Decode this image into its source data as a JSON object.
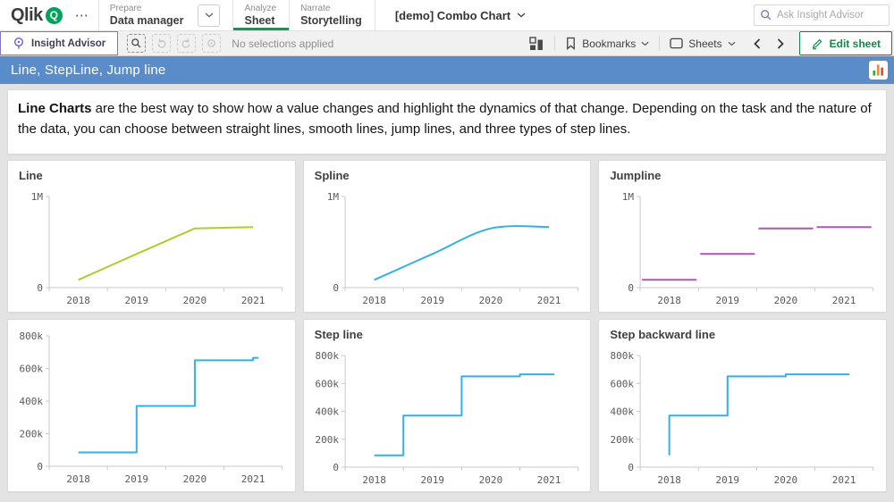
{
  "colors": {
    "brand_green": "#00a359",
    "active_tab_underline": "#00a152",
    "edit_green": "#0d8a47",
    "insight_purple": "#7b6fc4",
    "titlebar_blue": "#5a8cc9",
    "thumbnail_bar_colors": [
      "#44a04a",
      "#f0901e",
      "#dd4b39"
    ]
  },
  "header": {
    "logo_text": "Qlik",
    "logo_q": "Q",
    "more_icon": "⋯",
    "nav": [
      {
        "section": "Prepare",
        "page": "Data manager",
        "dropdown": true,
        "active": false
      },
      {
        "section": "Analyze",
        "page": "Sheet",
        "dropdown": false,
        "active": true
      },
      {
        "section": "Narrate",
        "page": "Storytelling",
        "dropdown": false,
        "active": false
      }
    ],
    "app_title": "[demo] Combo Chart",
    "search_placeholder": "Ask Insight Advisor"
  },
  "toolbar": {
    "insight_advisor": "Insight Advisor",
    "no_selections": "No selections applied",
    "bookmarks": "Bookmarks",
    "sheets": "Sheets",
    "edit_sheet": "Edit sheet"
  },
  "sheet": {
    "title": "Line, StepLine, Jump line",
    "description_bold": "Line Charts",
    "description_rest": " are the best way to show how a value changes and highlight the dynamics of that change. Depending on the task and the nature of the data, you can choose between straight lines, smooth lines, jump lines, and three types of step lines."
  },
  "chart_data": [
    {
      "type": "line",
      "variant": "linear",
      "title": "Line",
      "color": "#b2cb2f",
      "x": [
        "2018",
        "2019",
        "2020",
        "2021"
      ],
      "values": [
        85000,
        370000,
        650000,
        665000
      ],
      "ylim": [
        0,
        1000000
      ],
      "yticks": [
        {
          "v": 0,
          "label": "0"
        },
        {
          "v": 1000000,
          "label": "1M"
        }
      ]
    },
    {
      "type": "line",
      "variant": "spline",
      "title": "Spline",
      "color": "#33b1e6",
      "x": [
        "2018",
        "2019",
        "2020",
        "2021"
      ],
      "values": [
        85000,
        370000,
        650000,
        665000
      ],
      "ylim": [
        0,
        1000000
      ],
      "yticks": [
        {
          "v": 0,
          "label": "0"
        },
        {
          "v": 1000000,
          "label": "1M"
        }
      ]
    },
    {
      "type": "line",
      "variant": "jump",
      "title": "Jumpline",
      "color": "#ae55b8",
      "x": [
        "2018",
        "2019",
        "2020",
        "2021"
      ],
      "values": [
        85000,
        370000,
        650000,
        665000
      ],
      "ylim": [
        0,
        1000000
      ],
      "yticks": [
        {
          "v": 0,
          "label": "0"
        },
        {
          "v": 1000000,
          "label": "1M"
        }
      ]
    },
    {
      "type": "line",
      "variant": "step-after",
      "title": "",
      "color": "#33b1e6",
      "x": [
        "2018",
        "2019",
        "2020",
        "2021"
      ],
      "values": [
        85000,
        370000,
        650000,
        665000
      ],
      "ylim": [
        0,
        800000
      ],
      "yticks": [
        {
          "v": 0,
          "label": "0"
        },
        {
          "v": 200000,
          "label": "200k"
        },
        {
          "v": 400000,
          "label": "400k"
        },
        {
          "v": 600000,
          "label": "600k"
        },
        {
          "v": 800000,
          "label": "800k"
        }
      ]
    },
    {
      "type": "line",
      "variant": "step-middle",
      "title": "Step line",
      "color": "#33b1e6",
      "x": [
        "2018",
        "2019",
        "2020",
        "2021"
      ],
      "values": [
        85000,
        370000,
        650000,
        665000
      ],
      "ylim": [
        0,
        800000
      ],
      "yticks": [
        {
          "v": 0,
          "label": "0"
        },
        {
          "v": 200000,
          "label": "200k"
        },
        {
          "v": 400000,
          "label": "400k"
        },
        {
          "v": 600000,
          "label": "600k"
        },
        {
          "v": 800000,
          "label": "800k"
        }
      ]
    },
    {
      "type": "line",
      "variant": "step-before",
      "title": "Step backward line",
      "color": "#33b1e6",
      "x": [
        "2018",
        "2019",
        "2020",
        "2021"
      ],
      "values": [
        85000,
        370000,
        650000,
        665000
      ],
      "ylim": [
        0,
        800000
      ],
      "yticks": [
        {
          "v": 0,
          "label": "0"
        },
        {
          "v": 200000,
          "label": "200k"
        },
        {
          "v": 400000,
          "label": "400k"
        },
        {
          "v": 600000,
          "label": "600k"
        },
        {
          "v": 800000,
          "label": "800k"
        }
      ]
    }
  ]
}
